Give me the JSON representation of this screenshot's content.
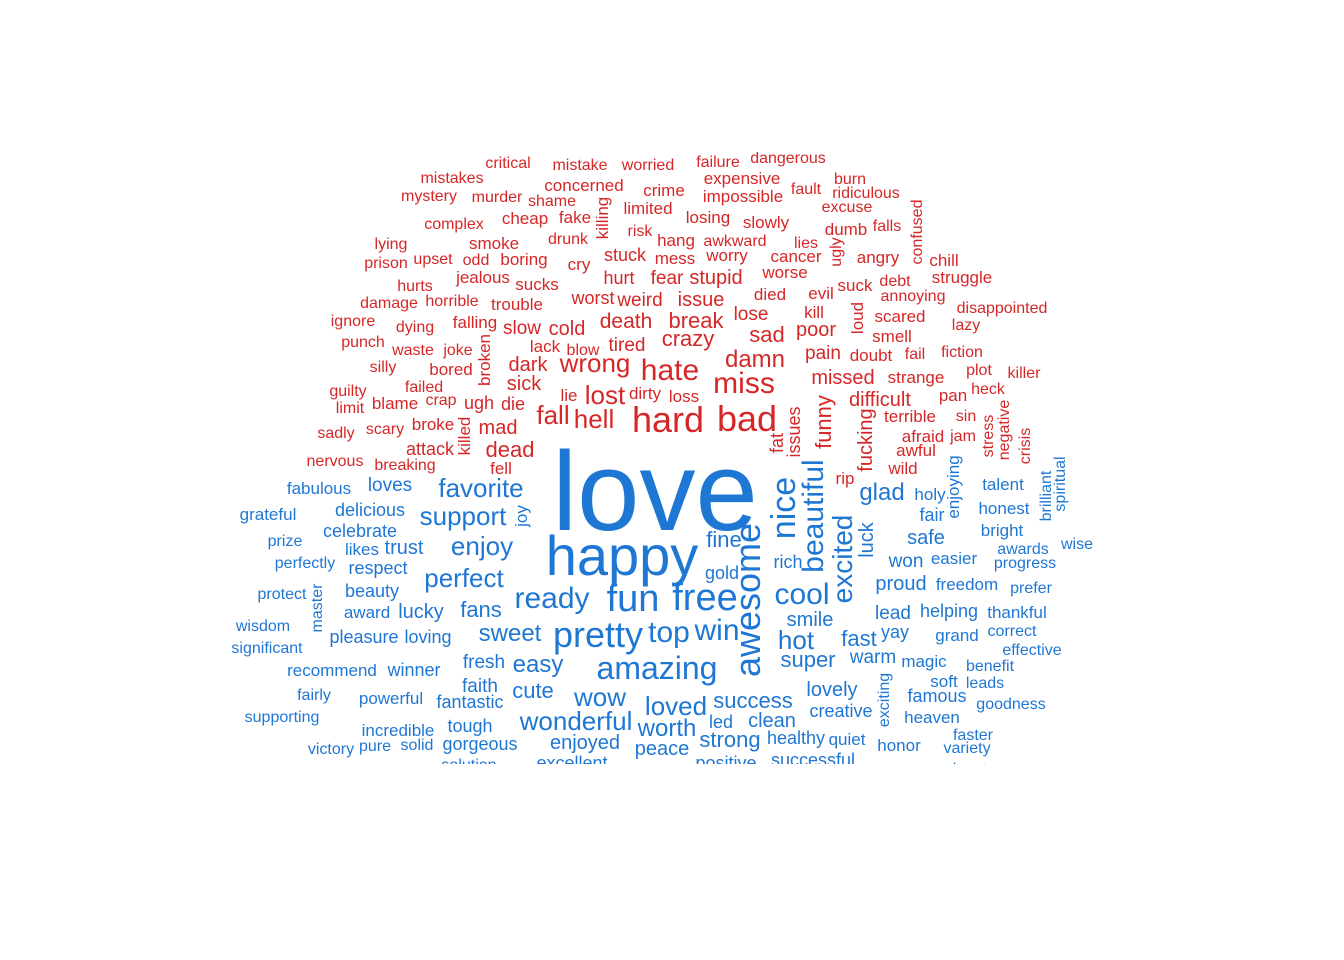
{
  "colors": {
    "negative": "#d62728",
    "positive": "#1f77d4"
  },
  "negative_words": [
    "critical",
    "mistake",
    "worried",
    "failure",
    "dangerous",
    "mistakes",
    "concerned",
    "expensive",
    "burn",
    "mystery",
    "murder",
    "shame",
    "crime",
    "impossible",
    "fault",
    "ridiculous",
    "limited",
    "excuse",
    "complex",
    "cheap",
    "fake",
    "losing",
    "slowly",
    "killing",
    "risk",
    "dumb",
    "falls",
    "confused",
    "lying",
    "drunk",
    "hang",
    "awkward",
    "lies",
    "smoke",
    "ugly",
    "prison",
    "upset",
    "odd",
    "boring",
    "cry",
    "mess",
    "worry",
    "cancer",
    "angry",
    "chill",
    "stuck",
    "hurts",
    "jealous",
    "sucks",
    "hurt",
    "fear",
    "stupid",
    "worse",
    "debt",
    "struggle",
    "suck",
    "damage",
    "horrible",
    "trouble",
    "worst",
    "weird",
    "issue",
    "died",
    "evil",
    "annoying",
    "disappointed",
    "ignore",
    "falling",
    "cold",
    "death",
    "break",
    "lose",
    "kill",
    "loud",
    "scared",
    "lazy",
    "dying",
    "slow",
    "lack",
    "crazy",
    "sad",
    "poor",
    "smell",
    "punch",
    "waste",
    "joke",
    "broken",
    "blow",
    "tired",
    "damn",
    "pain",
    "doubt",
    "fail",
    "fiction",
    "silly",
    "bored",
    "dark",
    "wrong",
    "hate",
    "missed",
    "strange",
    "plot",
    "killer",
    "guilty",
    "failed",
    "sick",
    "lie",
    "dirty",
    "lost",
    "loss",
    "miss",
    "difficult",
    "pan",
    "heck",
    "limit",
    "blame",
    "crap",
    "ugh",
    "die",
    "fall",
    "issues",
    "funny",
    "terrible",
    "sin",
    "negative",
    "sadly",
    "scary",
    "broke",
    "mad",
    "hell",
    "hard",
    "bad",
    "fat",
    "fucking",
    "afraid",
    "jam",
    "stress",
    "crisis",
    "nervous",
    "attack",
    "killed",
    "dead",
    "awful",
    "breaking",
    "fell",
    "rip",
    "wild"
  ],
  "positive_words": [
    "love",
    "happy",
    "fabulous",
    "loves",
    "favorite",
    "nice",
    "beautiful",
    "glad",
    "holy",
    "enjoying",
    "talent",
    "brilliant",
    "spiritual",
    "grateful",
    "delicious",
    "joy",
    "fair",
    "honest",
    "celebrate",
    "support",
    "excited",
    "luck",
    "bright",
    "prize",
    "likes",
    "trust",
    "enjoy",
    "fine",
    "safe",
    "awards",
    "wise",
    "perfectly",
    "respect",
    "rich",
    "easier",
    "progress",
    "gold",
    "won",
    "proud",
    "freedom",
    "prefer",
    "protect",
    "beauty",
    "perfect",
    "awesome",
    "cool",
    "master",
    "ready",
    "fun",
    "free",
    "wisdom",
    "award",
    "lucky",
    "fans",
    "smile",
    "lead",
    "helping",
    "thankful",
    "significant",
    "pleasure",
    "loving",
    "sweet",
    "pretty",
    "top",
    "win",
    "hot",
    "fast",
    "yay",
    "grand",
    "correct",
    "effective",
    "recommend",
    "winner",
    "super",
    "warm",
    "magic",
    "benefit",
    "fresh",
    "easy",
    "amazing",
    "faith",
    "cute",
    "lovely",
    "soft",
    "leads",
    "fairly",
    "powerful",
    "wow",
    "fantastic",
    "loved",
    "success",
    "famous",
    "goodness",
    "supporting",
    "creative",
    "exciting",
    "heaven",
    "incredible",
    "tough",
    "wonderful",
    "led",
    "clean",
    "faster",
    "pure",
    "solid",
    "worth",
    "gorgeous",
    "enjoyed",
    "strong",
    "healthy",
    "quiet",
    "honor",
    "variety",
    "victory",
    "peace",
    "excellent",
    "positive",
    "successful",
    "advantage",
    "solution"
  ]
}
